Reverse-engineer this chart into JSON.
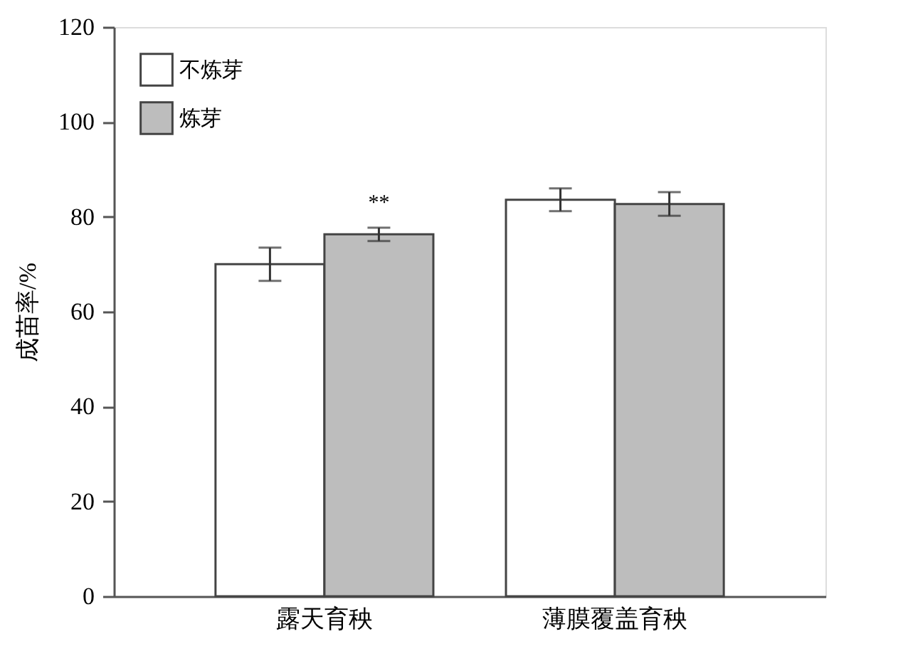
{
  "chart_data": {
    "type": "bar",
    "ylabel": "成苗率/%",
    "categories": [
      "露天育秧",
      "薄膜覆盖育秧"
    ],
    "series": [
      {
        "name": "不炼芽",
        "color": "#ffffff",
        "values": [
          70,
          83.6
        ],
        "errors": [
          3.5,
          2.4
        ]
      },
      {
        "name": "炼芽",
        "color": "#bdbdbd",
        "values": [
          76.3,
          82.7
        ],
        "errors": [
          1.4,
          2.5
        ]
      }
    ],
    "ylim": [
      0,
      120
    ],
    "yticks": [
      0,
      20,
      40,
      60,
      80,
      100,
      120
    ],
    "grid": false,
    "legend": "top left",
    "annotations": [
      "**"
    ]
  }
}
